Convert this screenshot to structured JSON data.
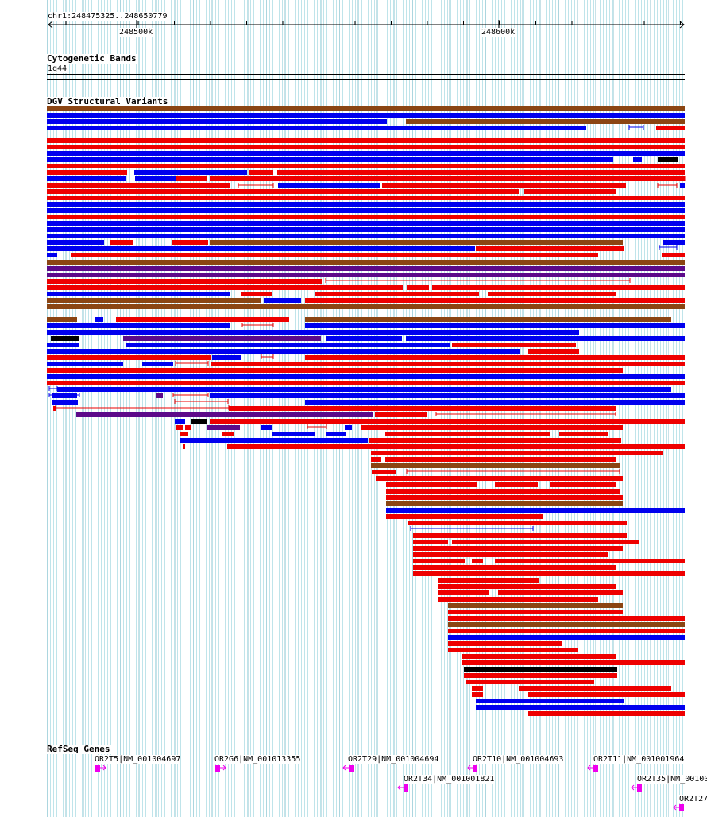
{
  "ruler": {
    "range_label": "chr1:248475325..248650779",
    "ticks": [
      {
        "label": "248500k",
        "pos": 248500000
      },
      {
        "label": "248600k",
        "pos": 248600000
      }
    ],
    "start": 248475325,
    "end": 248650779
  },
  "cytoband": {
    "title": "Cytogenetic Bands",
    "band": "1q44"
  },
  "dgv": {
    "title": "DGV Structural Variants",
    "colors": {
      "gain": "#0000ee",
      "loss": "#ee0000",
      "both": "#8b4513",
      "inversion": "#5c0a8a",
      "complex": "#000000"
    }
  },
  "refseq": {
    "title": "RefSeq Genes",
    "color": "#ee00ee",
    "genes": [
      {
        "label": "OR2T5|NM_001004697",
        "strand": "+"
      },
      {
        "label": "OR2G6|NM_001013355",
        "strand": "+"
      },
      {
        "label": "OR2T29|NM_001004694",
        "strand": "-"
      },
      {
        "label": "OR2T10|NM_001004693",
        "strand": "-"
      },
      {
        "label": "OR2T11|NM_001001964",
        "strand": "-"
      },
      {
        "label": "OR2T34|NM_001001821",
        "strand": "-"
      },
      {
        "label": "OR2T35|NM_00100",
        "strand": "-"
      },
      {
        "label": "OR2T27",
        "strand": "-"
      }
    ]
  }
}
